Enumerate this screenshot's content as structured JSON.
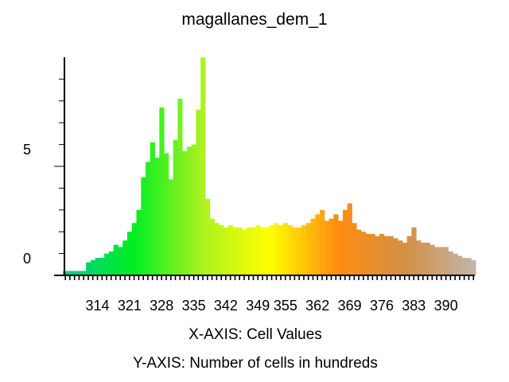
{
  "chart_data": {
    "type": "bar",
    "title": "magallanes_dem_1",
    "xlabel": "X-AXIS: Cell Values",
    "ylabel": "Y-AXIS: Number of cells in hundreds",
    "x_tick_labels": [
      "314",
      "321",
      "328",
      "335",
      "342",
      "349",
      "355",
      "362",
      "369",
      "376",
      "383",
      "390"
    ],
    "y_tick_labels": [
      "0",
      "5"
    ],
    "xlim": [
      306.8,
      396.3
    ],
    "ylim": [
      0,
      10
    ],
    "grid": false,
    "legend": "none",
    "color_ramp": [
      "#00cc88",
      "#00ee22",
      "#aaf220",
      "#ffff00",
      "#ff8c10",
      "#d29046",
      "#c2b4a6"
    ],
    "x": [
      307,
      308,
      309,
      310,
      311,
      312,
      313,
      314,
      315,
      316,
      317,
      318,
      319,
      320,
      321,
      322,
      323,
      324,
      325,
      326,
      327,
      328,
      329,
      330,
      331,
      332,
      333,
      334,
      335,
      336,
      337,
      338,
      339,
      340,
      341,
      342,
      343,
      344,
      345,
      346,
      347,
      348,
      349,
      350,
      351,
      352,
      353,
      354,
      355,
      356,
      357,
      358,
      359,
      360,
      361,
      362,
      363,
      364,
      365,
      366,
      367,
      368,
      369,
      370,
      371,
      372,
      373,
      374,
      375,
      376,
      377,
      378,
      379,
      380,
      381,
      382,
      383,
      384,
      385,
      386,
      387,
      388,
      389,
      390,
      391,
      392,
      393,
      394,
      395,
      396
    ],
    "values": [
      0.2,
      0.2,
      0.2,
      0.2,
      0.2,
      0.6,
      0.7,
      0.8,
      0.8,
      1.0,
      1.1,
      1.4,
      1.3,
      1.6,
      2.0,
      2.4,
      3.0,
      4.5,
      5.2,
      6.1,
      5.4,
      7.7,
      5.6,
      4.4,
      6.2,
      8.1,
      5.7,
      5.9,
      6.0,
      7.6,
      10.0,
      3.5,
      2.6,
      2.4,
      2.3,
      2.2,
      2.3,
      2.2,
      2.2,
      2.1,
      2.2,
      2.2,
      2.3,
      2.2,
      2.2,
      2.3,
      2.4,
      2.3,
      2.4,
      2.3,
      2.2,
      2.2,
      2.3,
      2.4,
      2.6,
      2.8,
      3.0,
      2.5,
      2.6,
      2.8,
      2.5,
      3.0,
      3.3,
      2.4,
      2.1,
      2.0,
      1.9,
      1.9,
      1.8,
      1.9,
      1.8,
      1.8,
      1.7,
      1.6,
      1.5,
      1.8,
      2.2,
      1.6,
      1.5,
      1.5,
      1.4,
      1.3,
      1.3,
      1.3,
      1.1,
      1.0,
      0.9,
      0.8,
      0.8,
      0.7
    ]
  }
}
